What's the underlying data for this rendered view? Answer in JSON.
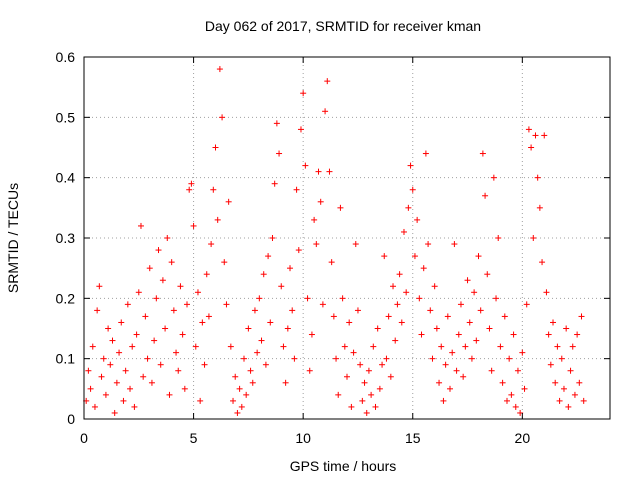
{
  "chart_data": {
    "type": "scatter",
    "title": "Day 062 of 2017, SRMTID for receiver kman",
    "xlabel": "GPS time / hours",
    "ylabel": "SRMTID / TECUs",
    "xlim": [
      0,
      24
    ],
    "ylim": [
      0,
      0.6
    ],
    "xticks": [
      0,
      5,
      10,
      15,
      20
    ],
    "yticks": [
      0,
      0.1,
      0.2,
      0.3,
      0.4,
      0.5,
      0.6
    ],
    "ytick_labels": [
      "0",
      "0.1",
      "0.2",
      "0.3",
      "0.4",
      "0.5",
      "0.6"
    ],
    "grid": true,
    "marker": "plus",
    "color": "#ff0000",
    "x_range_of_data": [
      0,
      22.8
    ],
    "series": [
      {
        "points": [
          [
            0.1,
            0.03
          ],
          [
            0.2,
            0.08
          ],
          [
            0.3,
            0.05
          ],
          [
            0.4,
            0.12
          ],
          [
            0.5,
            0.02
          ],
          [
            0.6,
            0.18
          ],
          [
            0.7,
            0.22
          ],
          [
            0.8,
            0.07
          ],
          [
            0.9,
            0.1
          ],
          [
            1.0,
            0.04
          ],
          [
            1.1,
            0.15
          ],
          [
            1.2,
            0.09
          ],
          [
            1.3,
            0.13
          ],
          [
            1.4,
            0.01
          ],
          [
            1.5,
            0.06
          ],
          [
            1.6,
            0.11
          ],
          [
            1.7,
            0.16
          ],
          [
            1.8,
            0.03
          ],
          [
            1.9,
            0.08
          ],
          [
            2.0,
            0.19
          ],
          [
            2.1,
            0.05
          ],
          [
            2.2,
            0.12
          ],
          [
            2.3,
            0.02
          ],
          [
            2.4,
            0.14
          ],
          [
            2.5,
            0.21
          ],
          [
            2.6,
            0.32
          ],
          [
            2.7,
            0.07
          ],
          [
            2.8,
            0.17
          ],
          [
            2.9,
            0.1
          ],
          [
            3.0,
            0.25
          ],
          [
            3.1,
            0.06
          ],
          [
            3.2,
            0.13
          ],
          [
            3.3,
            0.2
          ],
          [
            3.4,
            0.28
          ],
          [
            3.5,
            0.09
          ],
          [
            3.6,
            0.23
          ],
          [
            3.7,
            0.15
          ],
          [
            3.8,
            0.3
          ],
          [
            3.9,
            0.04
          ],
          [
            4.0,
            0.26
          ],
          [
            4.1,
            0.18
          ],
          [
            4.2,
            0.11
          ],
          [
            4.3,
            0.08
          ],
          [
            4.4,
            0.22
          ],
          [
            4.5,
            0.14
          ],
          [
            4.6,
            0.05
          ],
          [
            4.7,
            0.19
          ],
          [
            4.8,
            0.38
          ],
          [
            4.9,
            0.39
          ],
          [
            5.0,
            0.32
          ],
          [
            5.1,
            0.12
          ],
          [
            5.2,
            0.21
          ],
          [
            5.3,
            0.03
          ],
          [
            5.4,
            0.16
          ],
          [
            5.5,
            0.09
          ],
          [
            5.6,
            0.24
          ],
          [
            5.7,
            0.17
          ],
          [
            5.8,
            0.29
          ],
          [
            5.9,
            0.38
          ],
          [
            6.0,
            0.45
          ],
          [
            6.1,
            0.33
          ],
          [
            6.2,
            0.58
          ],
          [
            6.3,
            0.5
          ],
          [
            6.4,
            0.26
          ],
          [
            6.5,
            0.19
          ],
          [
            6.6,
            0.36
          ],
          [
            6.7,
            0.12
          ],
          [
            6.8,
            0.03
          ],
          [
            6.9,
            0.07
          ],
          [
            7.0,
            0.01
          ],
          [
            7.1,
            0.05
          ],
          [
            7.2,
            0.02
          ],
          [
            7.3,
            0.1
          ],
          [
            7.4,
            0.04
          ],
          [
            7.5,
            0.15
          ],
          [
            7.6,
            0.08
          ],
          [
            7.7,
            0.06
          ],
          [
            7.8,
            0.18
          ],
          [
            7.9,
            0.11
          ],
          [
            8.0,
            0.2
          ],
          [
            8.1,
            0.13
          ],
          [
            8.2,
            0.24
          ],
          [
            8.3,
            0.09
          ],
          [
            8.4,
            0.27
          ],
          [
            8.5,
            0.16
          ],
          [
            8.6,
            0.3
          ],
          [
            8.7,
            0.39
          ],
          [
            8.8,
            0.49
          ],
          [
            8.9,
            0.44
          ],
          [
            9.0,
            0.22
          ],
          [
            9.1,
            0.12
          ],
          [
            9.2,
            0.06
          ],
          [
            9.3,
            0.15
          ],
          [
            9.4,
            0.25
          ],
          [
            9.5,
            0.18
          ],
          [
            9.6,
            0.1
          ],
          [
            9.7,
            0.38
          ],
          [
            9.8,
            0.28
          ],
          [
            9.9,
            0.48
          ],
          [
            10.0,
            0.54
          ],
          [
            10.1,
            0.42
          ],
          [
            10.2,
            0.2
          ],
          [
            10.3,
            0.08
          ],
          [
            10.4,
            0.14
          ],
          [
            10.5,
            0.33
          ],
          [
            10.6,
            0.29
          ],
          [
            10.7,
            0.41
          ],
          [
            10.8,
            0.36
          ],
          [
            10.9,
            0.19
          ],
          [
            11.0,
            0.51
          ],
          [
            11.1,
            0.56
          ],
          [
            11.2,
            0.41
          ],
          [
            11.3,
            0.26
          ],
          [
            11.4,
            0.17
          ],
          [
            11.5,
            0.1
          ],
          [
            11.6,
            0.04
          ],
          [
            11.7,
            0.35
          ],
          [
            11.8,
            0.2
          ],
          [
            11.9,
            0.12
          ],
          [
            12.0,
            0.07
          ],
          [
            12.1,
            0.16
          ],
          [
            12.2,
            0.02
          ],
          [
            12.3,
            0.11
          ],
          [
            12.4,
            0.29
          ],
          [
            12.5,
            0.18
          ],
          [
            12.6,
            0.09
          ],
          [
            12.7,
            0.03
          ],
          [
            12.8,
            0.06
          ],
          [
            12.9,
            0.01
          ],
          [
            13.0,
            0.08
          ],
          [
            13.1,
            0.04
          ],
          [
            13.2,
            0.12
          ],
          [
            13.3,
            0.02
          ],
          [
            13.4,
            0.15
          ],
          [
            13.5,
            0.05
          ],
          [
            13.6,
            0.09
          ],
          [
            13.7,
            0.27
          ],
          [
            13.8,
            0.1
          ],
          [
            13.9,
            0.17
          ],
          [
            14.0,
            0.07
          ],
          [
            14.1,
            0.22
          ],
          [
            14.2,
            0.13
          ],
          [
            14.3,
            0.19
          ],
          [
            14.4,
            0.24
          ],
          [
            14.5,
            0.16
          ],
          [
            14.6,
            0.31
          ],
          [
            14.7,
            0.21
          ],
          [
            14.8,
            0.35
          ],
          [
            14.9,
            0.42
          ],
          [
            15.0,
            0.38
          ],
          [
            15.1,
            0.27
          ],
          [
            15.2,
            0.33
          ],
          [
            15.3,
            0.2
          ],
          [
            15.4,
            0.14
          ],
          [
            15.5,
            0.25
          ],
          [
            15.6,
            0.44
          ],
          [
            15.7,
            0.29
          ],
          [
            15.8,
            0.18
          ],
          [
            15.9,
            0.1
          ],
          [
            16.0,
            0.22
          ],
          [
            16.1,
            0.15
          ],
          [
            16.2,
            0.06
          ],
          [
            16.3,
            0.12
          ],
          [
            16.4,
            0.03
          ],
          [
            16.5,
            0.09
          ],
          [
            16.6,
            0.17
          ],
          [
            16.7,
            0.05
          ],
          [
            16.8,
            0.11
          ],
          [
            16.9,
            0.29
          ],
          [
            17.0,
            0.08
          ],
          [
            17.1,
            0.14
          ],
          [
            17.2,
            0.19
          ],
          [
            17.3,
            0.07
          ],
          [
            17.4,
            0.12
          ],
          [
            17.5,
            0.23
          ],
          [
            17.6,
            0.16
          ],
          [
            17.7,
            0.1
          ],
          [
            17.8,
            0.21
          ],
          [
            17.9,
            0.13
          ],
          [
            18.0,
            0.27
          ],
          [
            18.1,
            0.18
          ],
          [
            18.2,
            0.44
          ],
          [
            18.3,
            0.37
          ],
          [
            18.4,
            0.24
          ],
          [
            18.5,
            0.15
          ],
          [
            18.6,
            0.08
          ],
          [
            18.7,
            0.4
          ],
          [
            18.8,
            0.2
          ],
          [
            18.9,
            0.3
          ],
          [
            19.0,
            0.12
          ],
          [
            19.1,
            0.06
          ],
          [
            19.2,
            0.17
          ],
          [
            19.3,
            0.03
          ],
          [
            19.4,
            0.1
          ],
          [
            19.5,
            0.04
          ],
          [
            19.6,
            0.14
          ],
          [
            19.7,
            0.02
          ],
          [
            19.8,
            0.08
          ],
          [
            19.9,
            0.01
          ],
          [
            20.0,
            0.11
          ],
          [
            20.1,
            0.05
          ],
          [
            20.2,
            0.19
          ],
          [
            20.3,
            0.48
          ],
          [
            20.4,
            0.45
          ],
          [
            20.5,
            0.3
          ],
          [
            20.6,
            0.47
          ],
          [
            20.7,
            0.4
          ],
          [
            20.8,
            0.35
          ],
          [
            20.9,
            0.26
          ],
          [
            21.0,
            0.47
          ],
          [
            21.1,
            0.21
          ],
          [
            21.2,
            0.14
          ],
          [
            21.3,
            0.09
          ],
          [
            21.4,
            0.16
          ],
          [
            21.5,
            0.06
          ],
          [
            21.6,
            0.12
          ],
          [
            21.7,
            0.03
          ],
          [
            21.8,
            0.1
          ],
          [
            21.9,
            0.05
          ],
          [
            22.0,
            0.15
          ],
          [
            22.1,
            0.02
          ],
          [
            22.2,
            0.08
          ],
          [
            22.3,
            0.12
          ],
          [
            22.4,
            0.04
          ],
          [
            22.5,
            0.14
          ],
          [
            22.6,
            0.06
          ],
          [
            22.7,
            0.17
          ],
          [
            22.8,
            0.03
          ]
        ]
      }
    ]
  }
}
